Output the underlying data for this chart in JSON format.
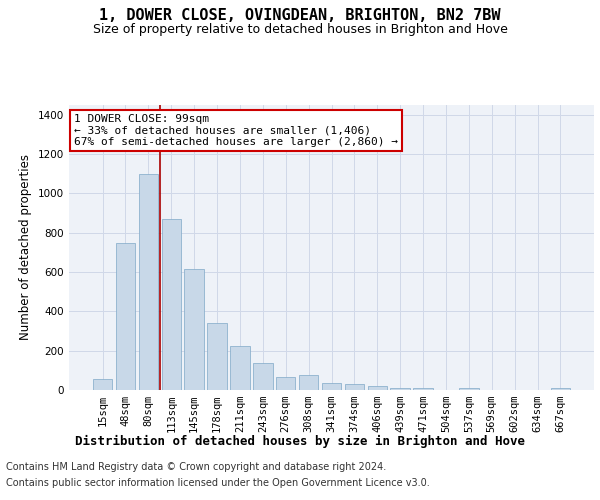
{
  "title": "1, DOWER CLOSE, OVINGDEAN, BRIGHTON, BN2 7BW",
  "subtitle": "Size of property relative to detached houses in Brighton and Hove",
  "xlabel": "Distribution of detached houses by size in Brighton and Hove",
  "ylabel": "Number of detached properties",
  "categories": [
    "15sqm",
    "48sqm",
    "80sqm",
    "113sqm",
    "145sqm",
    "178sqm",
    "211sqm",
    "243sqm",
    "276sqm",
    "308sqm",
    "341sqm",
    "374sqm",
    "406sqm",
    "439sqm",
    "471sqm",
    "504sqm",
    "537sqm",
    "569sqm",
    "602sqm",
    "634sqm",
    "667sqm"
  ],
  "values": [
    55,
    750,
    1100,
    870,
    615,
    340,
    225,
    135,
    65,
    75,
    35,
    30,
    20,
    12,
    10,
    0,
    10,
    0,
    0,
    0,
    10
  ],
  "bar_color": "#c8d8e8",
  "bar_edge_color": "#7fa8c8",
  "grid_color": "#d0d8e8",
  "bg_color": "#eef2f8",
  "vline_color": "#aa0000",
  "annotation_text": "1 DOWER CLOSE: 99sqm\n← 33% of detached houses are smaller (1,406)\n67% of semi-detached houses are larger (2,860) →",
  "annotation_box_color": "#ffffff",
  "annotation_border_color": "#cc0000",
  "footnote1": "Contains HM Land Registry data © Crown copyright and database right 2024.",
  "footnote2": "Contains public sector information licensed under the Open Government Licence v3.0.",
  "ylim": [
    0,
    1450
  ],
  "yticks": [
    0,
    200,
    400,
    600,
    800,
    1000,
    1200,
    1400
  ],
  "title_fontsize": 11,
  "subtitle_fontsize": 9,
  "xlabel_fontsize": 9,
  "ylabel_fontsize": 8.5,
  "tick_fontsize": 7.5,
  "footnote_fontsize": 7
}
